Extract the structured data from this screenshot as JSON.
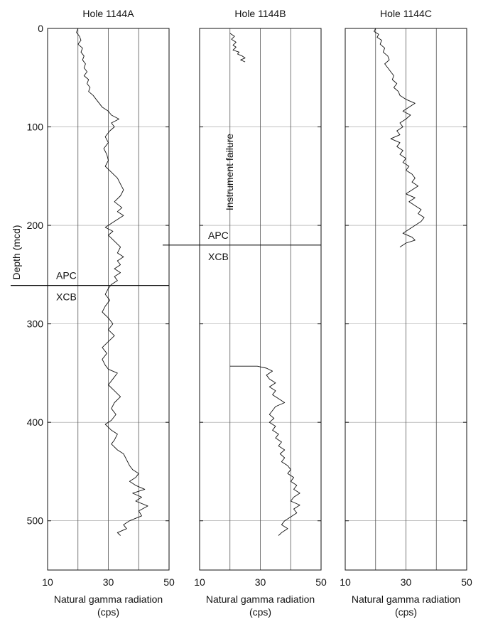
{
  "chart_data": {
    "type": "line",
    "y_axis": {
      "label": "Depth (mcd)",
      "range": [
        0,
        550
      ],
      "inverted": true,
      "ticks": [
        0,
        100,
        200,
        300,
        400,
        500
      ]
    },
    "x_axis": {
      "label_line1": "Natural gamma radiation",
      "label_line2": "(cps)",
      "range": [
        10,
        50
      ],
      "ticks": [
        10,
        30,
        50
      ],
      "gridlines": [
        20,
        30,
        40
      ]
    },
    "grid": true,
    "panels": [
      {
        "title": "Hole 1144A",
        "boundaries": [
          {
            "depth": 261,
            "above_label": "APC",
            "below_label": "XCB"
          }
        ],
        "annotations": [],
        "segments": [
          [
            [
              20,
              0
            ],
            [
              19.5,
              4
            ],
            [
              20.5,
              8
            ],
            [
              21,
              12
            ],
            [
              20,
              16
            ],
            [
              21.5,
              20
            ],
            [
              21,
              24
            ],
            [
              22,
              28
            ],
            [
              21.5,
              32
            ],
            [
              22.5,
              36
            ],
            [
              22,
              40
            ],
            [
              23,
              44
            ],
            [
              22,
              48
            ],
            [
              23.5,
              52
            ],
            [
              23,
              56
            ],
            [
              24,
              60
            ],
            [
              23.5,
              64
            ],
            [
              25,
              68
            ],
            [
              26,
              72
            ],
            [
              27,
              76
            ],
            [
              28,
              80
            ],
            [
              30,
              84
            ],
            [
              31,
              88
            ],
            [
              33.5,
              92
            ],
            [
              31,
              96
            ],
            [
              32,
              100
            ],
            [
              30.5,
              104
            ],
            [
              29,
              110
            ],
            [
              30,
              116
            ],
            [
              28.5,
              122
            ],
            [
              29.5,
              128
            ],
            [
              30,
              134
            ],
            [
              29,
              140
            ],
            [
              31,
              146
            ],
            [
              33,
              152
            ],
            [
              34,
              158
            ],
            [
              35,
              164
            ],
            [
              34,
              170
            ],
            [
              32,
              176
            ],
            [
              34.5,
              182
            ],
            [
              33,
              186
            ],
            [
              35,
              190
            ],
            [
              33,
              194
            ],
            [
              31,
              198
            ],
            [
              29,
              202
            ],
            [
              31.5,
              206
            ],
            [
              30,
              210
            ],
            [
              32,
              216
            ],
            [
              34,
              222
            ],
            [
              33,
              228
            ],
            [
              35,
              232
            ],
            [
              33,
              236
            ],
            [
              34,
              240
            ],
            [
              32,
              244
            ],
            [
              34,
              248
            ],
            [
              32,
              252
            ],
            [
              33,
              256
            ],
            [
              31,
              260
            ],
            [
              30,
              264
            ],
            [
              29,
              270
            ],
            [
              30.5,
              276
            ],
            [
              29,
              282
            ],
            [
              28,
              288
            ],
            [
              30,
              294
            ],
            [
              31.5,
              300
            ],
            [
              30,
              306
            ],
            [
              32,
              312
            ],
            [
              30,
              318
            ],
            [
              28,
              324
            ],
            [
              29.5,
              330
            ],
            [
              28,
              336
            ],
            [
              29,
              342
            ],
            [
              30,
              346
            ],
            [
              33,
              350
            ],
            [
              31.5,
              356
            ],
            [
              30,
              362
            ],
            [
              32,
              368
            ],
            [
              34,
              374
            ],
            [
              32,
              380
            ],
            [
              31,
              386
            ],
            [
              32.5,
              392
            ],
            [
              31,
              398
            ],
            [
              29,
              402
            ],
            [
              31,
              408
            ],
            [
              33,
              412
            ],
            [
              32,
              418
            ],
            [
              31,
              422
            ],
            [
              33,
              428
            ],
            [
              35,
              432
            ],
            [
              36,
              438
            ],
            [
              37,
              444
            ],
            [
              38,
              448
            ],
            [
              40,
              452
            ],
            [
              39,
              456
            ],
            [
              37,
              460
            ],
            [
              39,
              464
            ],
            [
              42,
              468
            ],
            [
              38,
              472
            ],
            [
              41,
              476
            ],
            [
              39,
              480
            ],
            [
              43,
              485
            ],
            [
              40,
              490
            ],
            [
              41,
              495
            ],
            [
              37,
              500
            ],
            [
              35,
              504
            ],
            [
              36,
              508
            ],
            [
              33,
              512
            ],
            [
              34,
              515
            ]
          ]
        ]
      },
      {
        "title": "Hole 1144B",
        "boundaries": [
          {
            "depth": 220,
            "above_label": "APC",
            "below_label": "XCB"
          }
        ],
        "annotations": [
          "Instrument failure"
        ],
        "segments": [
          [
            [
              20,
              5
            ],
            [
              21.5,
              8
            ],
            [
              20.5,
              11
            ],
            [
              22,
              14
            ],
            [
              21,
              17
            ],
            [
              22,
              19
            ],
            [
              21,
              22
            ],
            [
              23,
              24
            ],
            [
              22.5,
              26
            ],
            [
              24,
              28
            ],
            [
              25,
              30
            ],
            [
              23.5,
              32
            ],
            [
              25,
              34
            ]
          ],
          [
            [
              20,
              343
            ],
            [
              24,
              343
            ],
            [
              29,
              343
            ],
            [
              32,
              345
            ],
            [
              34,
              348
            ],
            [
              32,
              352
            ],
            [
              33,
              356
            ],
            [
              35,
              360
            ],
            [
              33,
              364
            ],
            [
              35,
              368
            ],
            [
              34,
              372
            ],
            [
              36,
              376
            ],
            [
              38,
              380
            ],
            [
              35,
              384
            ],
            [
              34,
              388
            ],
            [
              33,
              392
            ],
            [
              34.5,
              396
            ],
            [
              33,
              400
            ],
            [
              35,
              404
            ],
            [
              34,
              408
            ],
            [
              36,
              412
            ],
            [
              35,
              416
            ],
            [
              37,
              420
            ],
            [
              36,
              424
            ],
            [
              38,
              428
            ],
            [
              36.5,
              432
            ],
            [
              38,
              436
            ],
            [
              37,
              440
            ],
            [
              39,
              444
            ],
            [
              40,
              448
            ],
            [
              39,
              452
            ],
            [
              41,
              456
            ],
            [
              40,
              460
            ],
            [
              42,
              464
            ],
            [
              41,
              468
            ],
            [
              43,
              472
            ],
            [
              41,
              476
            ],
            [
              40,
              480
            ],
            [
              43,
              484
            ],
            [
              41,
              488
            ],
            [
              42,
              492
            ],
            [
              40,
              496
            ],
            [
              38,
              500
            ],
            [
              37,
              504
            ],
            [
              39,
              508
            ],
            [
              37,
              512
            ],
            [
              36,
              515
            ]
          ]
        ]
      },
      {
        "title": "Hole 1144C",
        "boundaries": [],
        "annotations": [],
        "segments": [
          [
            [
              20,
              0
            ],
            [
              19.5,
              3
            ],
            [
              21,
              6
            ],
            [
              20.5,
              9
            ],
            [
              22,
              12
            ],
            [
              21.5,
              16
            ],
            [
              23,
              20
            ],
            [
              22.5,
              24
            ],
            [
              24,
              28
            ],
            [
              24.5,
              32
            ],
            [
              23,
              36
            ],
            [
              24,
              40
            ],
            [
              25,
              44
            ],
            [
              26,
              48
            ],
            [
              25.5,
              52
            ],
            [
              27,
              56
            ],
            [
              26,
              60
            ],
            [
              27.5,
              64
            ],
            [
              28,
              68
            ],
            [
              30,
              72
            ],
            [
              33,
              76
            ],
            [
              31,
              80
            ],
            [
              29,
              84
            ],
            [
              31.5,
              88
            ],
            [
              30,
              92
            ],
            [
              28,
              96
            ],
            [
              29,
              100
            ],
            [
              27,
              104
            ],
            [
              28,
              108
            ],
            [
              25,
              112
            ],
            [
              28,
              116
            ],
            [
              27,
              120
            ],
            [
              29,
              124
            ],
            [
              28,
              128
            ],
            [
              30,
              132
            ],
            [
              29,
              136
            ],
            [
              31,
              140
            ],
            [
              30,
              144
            ],
            [
              32,
              148
            ],
            [
              33,
              152
            ],
            [
              32,
              156
            ],
            [
              34,
              160
            ],
            [
              32,
              164
            ],
            [
              30,
              168
            ],
            [
              33,
              172
            ],
            [
              31,
              176
            ],
            [
              33,
              180
            ],
            [
              35,
              184
            ],
            [
              34,
              188
            ],
            [
              36,
              192
            ],
            [
              35,
              196
            ],
            [
              33,
              200
            ],
            [
              31,
              204
            ],
            [
              29,
              208
            ],
            [
              32,
              212
            ],
            [
              33,
              215
            ],
            [
              30,
              218
            ],
            [
              28,
              222
            ]
          ]
        ]
      }
    ]
  }
}
